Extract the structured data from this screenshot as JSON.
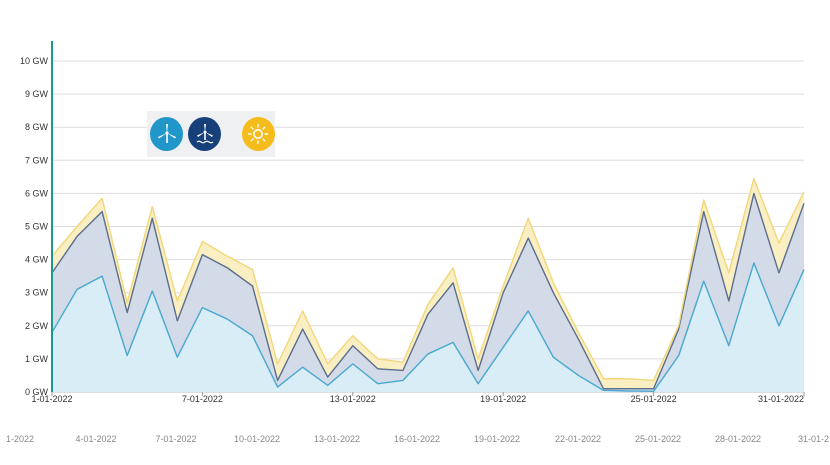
{
  "chart_data": {
    "type": "area",
    "stacked": true,
    "y_unit": "GW",
    "ylim": [
      0,
      10
    ],
    "yticks": [
      "0 GW",
      "1 GW",
      "2 GW",
      "3 GW",
      "4 GW",
      "5 GW",
      "6 GW",
      "7 GW",
      "8 GW",
      "9 GW",
      "10 GW"
    ],
    "x": [
      "1-01-2022",
      "2-01-2022",
      "3-01-2022",
      "4-01-2022",
      "5-01-2022",
      "6-01-2022",
      "7-01-2022",
      "8-01-2022",
      "9-01-2022",
      "10-01-2022",
      "11-01-2022",
      "12-01-2022",
      "13-01-2022",
      "14-01-2022",
      "15-01-2022",
      "16-01-2022",
      "17-01-2022",
      "18-01-2022",
      "19-01-2022",
      "20-01-2022",
      "21-01-2022",
      "22-01-2022",
      "23-01-2022",
      "24-01-2022",
      "25-01-2022",
      "26-01-2022",
      "27-01-2022",
      "28-01-2022",
      "29-01-2022",
      "30-01-2022",
      "31-01-2022"
    ],
    "xtick_labels": [
      "1-01-2022",
      "7-01-2022",
      "13-01-2022",
      "19-01-2022",
      "25-01-2022",
      "31-01-2022"
    ],
    "navigator_labels": [
      "1-2022",
      "4-01-2022",
      "7-01-2022",
      "10-01-2022",
      "13-01-2022",
      "16-01-2022",
      "19-01-2022",
      "22-01-2022",
      "25-01-2022",
      "28-01-2022",
      "31-01-2"
    ],
    "series": [
      {
        "legend_icon": "wind-turbine-icon",
        "color": "#4aa8cf",
        "fill": "#d8edf6",
        "values": [
          1.8,
          3.1,
          3.5,
          1.1,
          3.05,
          1.05,
          2.55,
          2.2,
          1.7,
          0.15,
          0.75,
          0.2,
          0.85,
          0.25,
          0.35,
          1.15,
          1.5,
          0.25,
          1.35,
          2.45,
          1.05,
          0.5,
          0.05,
          0.03,
          0.02,
          1.1,
          3.35,
          1.4,
          3.9,
          2.0,
          3.7
        ]
      },
      {
        "legend_icon": "offshore-wind-icon",
        "color": "#5b6e8c",
        "fill": "#d3dae8",
        "values": [
          1.8,
          1.6,
          1.95,
          1.3,
          2.2,
          1.1,
          1.6,
          1.55,
          1.5,
          0.2,
          1.15,
          0.25,
          0.55,
          0.45,
          0.3,
          1.2,
          1.8,
          0.4,
          1.65,
          2.2,
          1.95,
          1.1,
          0.05,
          0.07,
          0.08,
          0.8,
          2.1,
          1.35,
          2.1,
          1.6,
          2.0
        ]
      },
      {
        "legend_icon": "sun-icon",
        "color": "#f2d67a",
        "fill": "#f9efc3",
        "values": [
          0.5,
          0.3,
          0.4,
          0.3,
          0.35,
          0.6,
          0.4,
          0.35,
          0.5,
          0.5,
          0.55,
          0.4,
          0.3,
          0.3,
          0.25,
          0.3,
          0.45,
          0.35,
          0.2,
          0.6,
          0.3,
          0.2,
          0.3,
          0.3,
          0.25,
          0.1,
          0.35,
          0.85,
          0.45,
          0.9,
          0.35
        ]
      }
    ]
  }
}
